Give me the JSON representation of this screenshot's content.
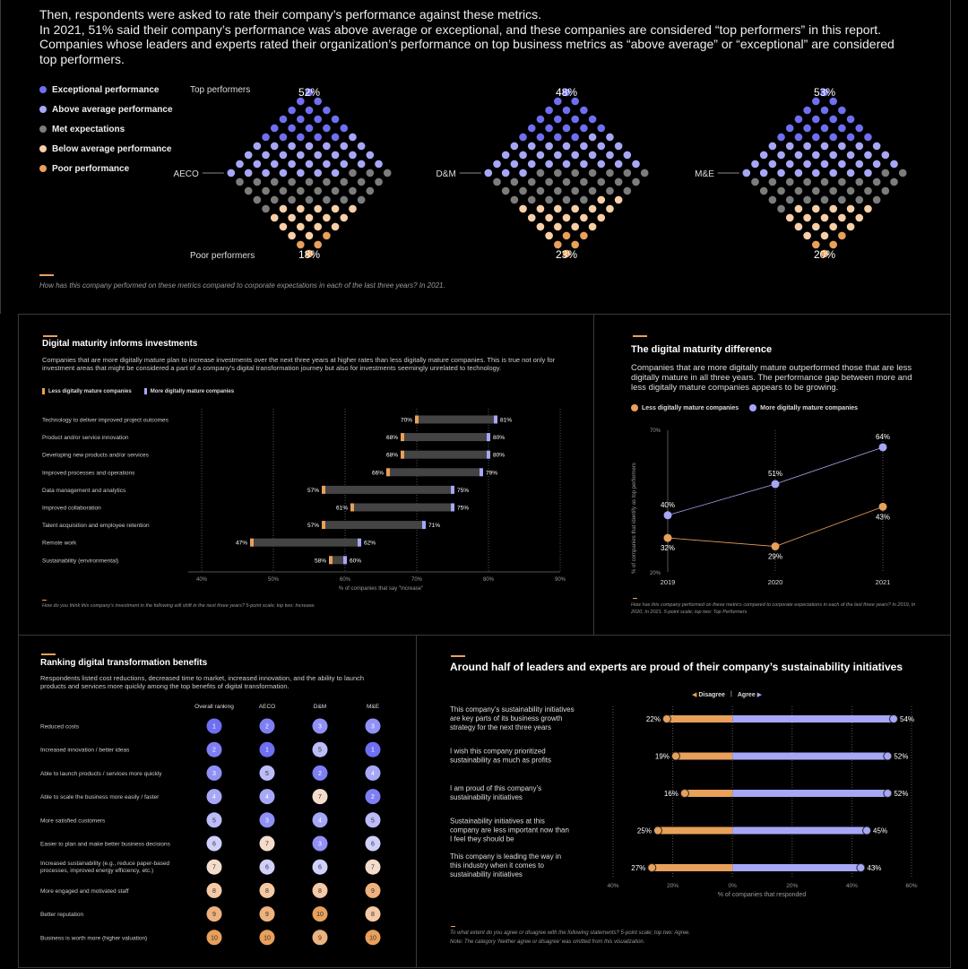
{
  "colors": {
    "exceptional": "#6f6ff2",
    "above": "#a7a7f8",
    "met": "#7c7c7c",
    "below": "#f8cfa7",
    "poor": "#e8a05a",
    "less": "#e8a05a",
    "more": "#a7a7f8"
  },
  "intro": {
    "line1": "Then, respondents were asked to rate their company’s performance against these metrics.",
    "line2": "In 2021, 51% said their company’s performance was above average or exceptional, and these companies are considered “top performers” in this report. Companies whose leaders and experts rated their organization’s performance on top business metrics as “above average” or “exceptional” are considered top performers."
  },
  "legend": [
    {
      "label": "Exceptional performance",
      "color": "#6f6ff2"
    },
    {
      "label": "Above average performance",
      "color": "#a7a7f8"
    },
    {
      "label": "Met expectations",
      "color": "#7c7c7c"
    },
    {
      "label": "Below average performance",
      "color": "#f8cfa7"
    },
    {
      "label": "Poor performance",
      "color": "#e8a05a"
    }
  ],
  "diamond_labels": {
    "top": "Top performers",
    "poor": "Poor performers"
  },
  "diamonds": [
    {
      "name": "AECO",
      "top": "52%",
      "bottom": "18%",
      "counts": [
        20,
        32,
        28,
        16,
        4
      ]
    },
    {
      "name": "D&M",
      "top": "48%",
      "bottom": "23%",
      "counts": [
        19,
        29,
        29,
        18,
        5
      ]
    },
    {
      "name": "M&E",
      "top": "53%",
      "bottom": "20%",
      "counts": [
        21,
        32,
        27,
        16,
        4
      ]
    }
  ],
  "top_footnote": "How has this company performed on these metrics compared to corporate expectations in each of the last three years? In 2021.",
  "chart_data": [
    {
      "type": "bar",
      "title": "Digital maturity informs investments",
      "subtitle": "Companies that are more digitally mature plan to increase investments over the next three years at higher rates than less digitally mature companies. This is true not only for investment areas that might be considered a part of a company’s digital transformation journey but also for investments seemingly unrelated to technology.",
      "legend": [
        "Less digitally mature companies",
        "More digitally mature companies"
      ],
      "categories": [
        "Technology to deliver improved project outcomes",
        "Product and/or service innovation",
        "Developing new products and/or services",
        "Improved processes and operations",
        "Data management and analytics",
        "Improved collaboration",
        "Talent acquisition and employee retention",
        "Remote work",
        "Sustainability (environmental)"
      ],
      "series": [
        {
          "name": "Less digitally mature companies",
          "values": [
            70,
            68,
            68,
            66,
            57,
            61,
            57,
            47,
            58
          ]
        },
        {
          "name": "More digitally mature companies",
          "values": [
            81,
            80,
            80,
            79,
            75,
            75,
            71,
            62,
            60
          ]
        }
      ],
      "xticks": [
        "40%",
        "50%",
        "60%",
        "70%",
        "80%",
        "90%"
      ],
      "xlim": [
        40,
        90
      ],
      "xlabel": "% of companies that say \"Increase\"",
      "footnote": "How do you think this company’s investment in the following will shift in the next three years? 5-point scale; top two: Increase."
    },
    {
      "type": "line",
      "title": "The digital maturity difference",
      "subtitle": "Companies that are more digitally mature outperformed those that are less digitally mature in all three years. The performance gap between more and less digitally mature companies appears to be growing.",
      "legend": [
        "Less digitally mature companies",
        "More digitally mature companies"
      ],
      "x": [
        "2019",
        "2020",
        "2021"
      ],
      "series": [
        {
          "name": "Less digitally mature companies",
          "values": [
            32,
            29,
            43
          ]
        },
        {
          "name": "More digitally mature companies",
          "values": [
            40,
            51,
            64
          ]
        }
      ],
      "ylim": [
        20,
        70
      ],
      "yticks": [
        "70%",
        "20%"
      ],
      "ylabel": "% of companies that identify as top performers",
      "footnote": "How has this company performed on these metrics compared to corporate expectations in each of the last three years? In 2019, In 2020, In 2021. 5-point scale; top two: Top Performers"
    },
    {
      "type": "table",
      "title": "Ranking digital transformation benefits",
      "subtitle": "Respondents listed cost reductions, decreased time to market, increased innovation, and the ability to launch products and services more quickly among the top benefits of digital transformation.",
      "columns": [
        "Overall ranking",
        "AECO",
        "D&M",
        "M&E"
      ],
      "rows": [
        {
          "label": "Reduced costs",
          "ranks": [
            1,
            2,
            3,
            3
          ]
        },
        {
          "label": "Increased innovation / better ideas",
          "ranks": [
            2,
            1,
            5,
            1
          ]
        },
        {
          "label": "Able to launch products / services more quickly",
          "ranks": [
            3,
            5,
            2,
            4
          ]
        },
        {
          "label": "Able to scale the business more easily / faster",
          "ranks": [
            4,
            4,
            7,
            2
          ]
        },
        {
          "label": "More satisfied customers",
          "ranks": [
            5,
            3,
            4,
            5
          ]
        },
        {
          "label": "Easier to plan and make better business decisions",
          "ranks": [
            6,
            7,
            3,
            6
          ]
        },
        {
          "label": "Increased sustainability (e.g., reduce paper-based processes, improved energy efficiency, etc.)",
          "ranks": [
            7,
            6,
            6,
            7
          ]
        },
        {
          "label": "More engaged and motivated staff",
          "ranks": [
            8,
            8,
            8,
            9
          ]
        },
        {
          "label": "Better reputation",
          "ranks": [
            9,
            9,
            10,
            8
          ]
        },
        {
          "label": "Business is worth more (higher valuation)",
          "ranks": [
            10,
            10,
            9,
            10
          ]
        }
      ]
    },
    {
      "type": "bar",
      "title": "Around half of leaders and experts are proud of their company’s sustainability initiatives",
      "legend": [
        "Disagree",
        "Agree"
      ],
      "categories": [
        "This company’s sustainability initiatives are key parts of its business growth strategy for the next three years",
        "I wish this company prioritized sustainability as much as profits",
        "I am proud of this company’s sustainability initiatives",
        "Sustainability initiatives at this company are less important now than I feel they should be",
        "This company is leading the way in this industry when it comes to sustainability initiatives"
      ],
      "series": [
        {
          "name": "Disagree",
          "values": [
            22,
            19,
            16,
            25,
            27
          ]
        },
        {
          "name": "Agree",
          "values": [
            54,
            52,
            52,
            45,
            43
          ]
        }
      ],
      "xticks": [
        "40%",
        "20%",
        "0%",
        "20%",
        "40%",
        "60%"
      ],
      "xlim": [
        -40,
        60
      ],
      "xlabel": "% of companies that responded",
      "footnote": "To what extent do you agree or disagree with the following statements? 5-point scale; top two: Agree.",
      "note": "Note: The category ‘Neither agree or disagree’ was omitted from this visualization."
    }
  ]
}
